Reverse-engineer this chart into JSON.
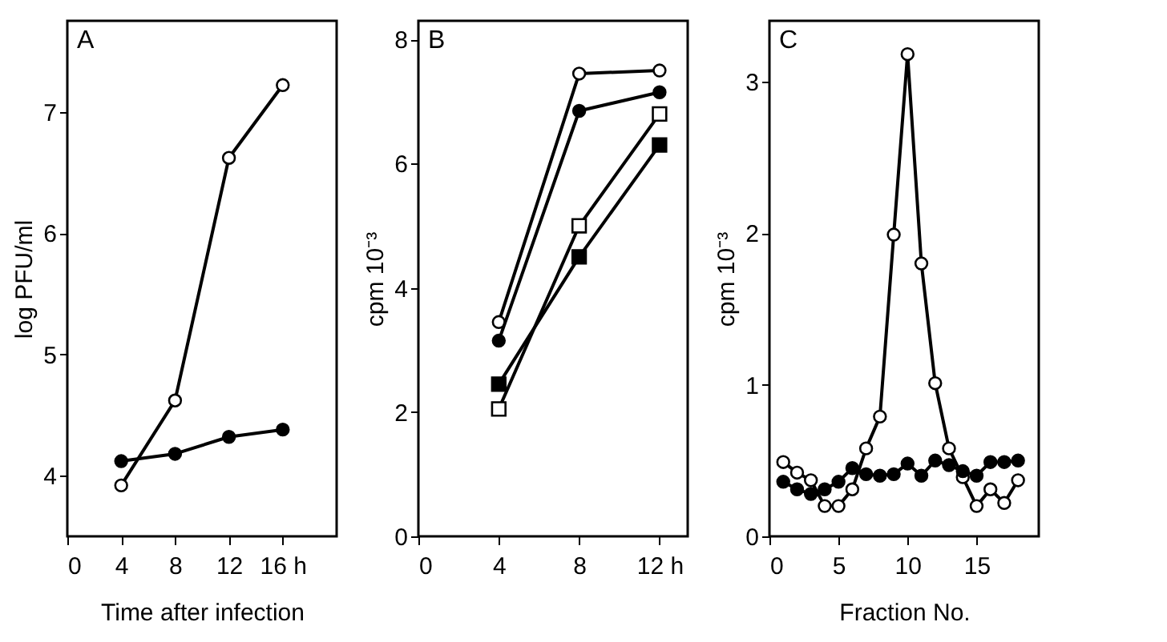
{
  "chart_data": [
    {
      "type": "line",
      "annotations": [
        "A"
      ],
      "xlabel": "Time after infection",
      "ylabel": "log PFU/ml",
      "x": [
        4,
        8,
        12,
        16
      ],
      "xlim": [
        0,
        20
      ],
      "xticks": [
        0,
        4,
        8,
        12,
        {
          "value": 16,
          "label": "16 h"
        }
      ],
      "ylim": [
        3.5,
        7.75
      ],
      "yticks": [
        4,
        5,
        6,
        7
      ],
      "marker": "circle",
      "series": [
        {
          "color": "#ffffff",
          "values": [
            3.92,
            4.62,
            6.62,
            7.22
          ]
        },
        {
          "color": "#000000",
          "values": [
            4.12,
            4.18,
            4.32,
            4.38
          ]
        }
      ]
    },
    {
      "type": "line",
      "annotations": [
        "B"
      ],
      "ylabel": "cpm 10⁻³",
      "x": [
        4,
        8,
        12
      ],
      "xlim": [
        0,
        13.4
      ],
      "xticks": [
        0,
        4,
        8,
        {
          "value": 12,
          "label": "12 h"
        }
      ],
      "ylim": [
        0,
        8.3
      ],
      "yticks": [
        0,
        2,
        4,
        6,
        8
      ],
      "series": [
        {
          "color": "#ffffff",
          "marker": "circle",
          "values": [
            3.45,
            7.45,
            7.5
          ]
        },
        {
          "color": "#000000",
          "marker": "circle",
          "values": [
            3.15,
            6.85,
            7.15
          ]
        },
        {
          "color": "#ffffff",
          "marker": "square",
          "values": [
            2.05,
            5.0,
            6.8
          ]
        },
        {
          "color": "#000000",
          "marker": "square",
          "values": [
            2.45,
            4.5,
            6.3
          ]
        }
      ]
    },
    {
      "type": "line",
      "annotations": [
        "C"
      ],
      "xlabel": "Fraction No.",
      "ylabel": "cpm 10⁻³",
      "x": [
        1,
        2,
        3,
        4,
        5,
        6,
        7,
        8,
        9,
        10,
        11,
        12,
        13,
        14,
        15,
        16,
        17,
        18
      ],
      "xlim": [
        0,
        19.5
      ],
      "xticks": [
        0,
        5,
        10,
        15
      ],
      "ylim": [
        0,
        3.4
      ],
      "yticks": [
        0,
        1,
        2,
        3
      ],
      "marker": "circle",
      "series": [
        {
          "color": "#ffffff",
          "values": [
            0.49,
            0.42,
            0.37,
            0.2,
            0.2,
            0.31,
            0.58,
            0.79,
            1.99,
            3.18,
            1.8,
            1.01,
            0.58,
            0.39,
            0.2,
            0.31,
            0.22,
            0.37
          ]
        },
        {
          "color": "#000000",
          "values": [
            0.36,
            0.31,
            0.28,
            0.31,
            0.36,
            0.45,
            0.41,
            0.4,
            0.41,
            0.48,
            0.4,
            0.5,
            0.47,
            0.43,
            0.4,
            0.49,
            0.49,
            0.5
          ]
        }
      ]
    }
  ]
}
